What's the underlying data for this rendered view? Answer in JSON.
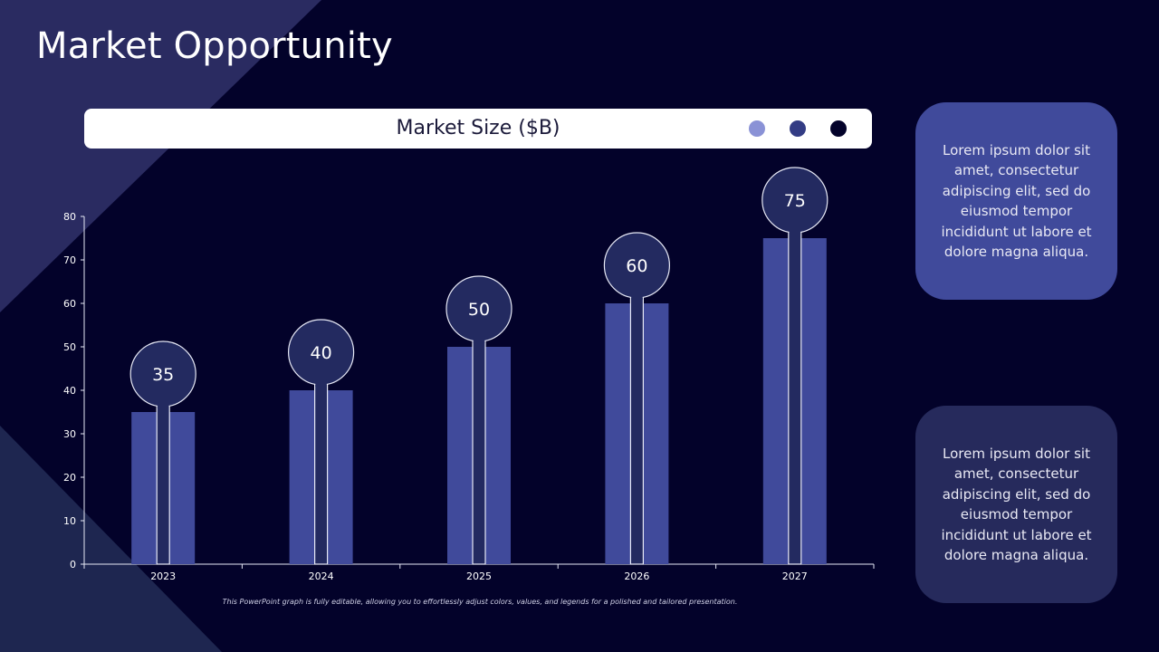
{
  "title": "Market Opportunity",
  "header": {
    "chart_title": "Market Size ($B)"
  },
  "legend_dots": [
    "#8a92d6",
    "#333c84",
    "#03022a"
  ],
  "colors": {
    "background": "#03022a",
    "bar": "#404a9b",
    "marker_fill": "#232a60",
    "marker_stroke": "#e6e8f5",
    "axis": "#e6e8f5"
  },
  "chart_data": {
    "type": "bar",
    "title": "Market Size ($B)",
    "categories": [
      "2023",
      "2024",
      "2025",
      "2026",
      "2027"
    ],
    "values": [
      35,
      40,
      50,
      60,
      75
    ],
    "labels": [
      "35",
      "40",
      "50",
      "60",
      "75"
    ],
    "xlabel": "",
    "ylabel": "",
    "ylim": [
      0,
      80
    ],
    "yticks": [
      "0",
      "10",
      "20",
      "30",
      "40",
      "50",
      "60",
      "70",
      "80"
    ],
    "grid": false,
    "legend": "none"
  },
  "side_boxes": [
    {
      "text": "Lorem ipsum dolor sit amet, consectetur adipiscing elit, sed do eiusmod tempor incididunt ut labore et dolore magna aliqua."
    },
    {
      "text": "Lorem ipsum dolor sit amet, consectetur adipiscing elit, sed do eiusmod tempor incididunt ut labore et dolore magna aliqua."
    }
  ],
  "footnote": "This PowerPoint graph is fully editable, allowing you to effortlessly adjust colors, values, and legends for a polished and tailored presentation."
}
